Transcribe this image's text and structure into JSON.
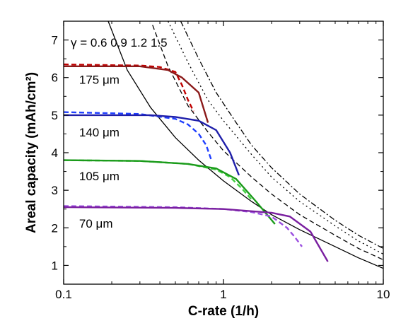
{
  "chart_data": {
    "type": "line",
    "title": "",
    "xlabel": "C-rate (1/h)",
    "ylabel": "Areal capacity (mAh/cm²)",
    "xscale": "log",
    "xlim": [
      0.1,
      10
    ],
    "ylim": [
      0.5,
      7.5
    ],
    "x_ticks": [
      0.1,
      1,
      10
    ],
    "x_tick_labels": [
      "0.1",
      "1",
      "10"
    ],
    "y_ticks": [
      1,
      2,
      3,
      4,
      5,
      6,
      7
    ],
    "y_tick_labels": [
      "1",
      "2",
      "3",
      "4",
      "5",
      "6",
      "7"
    ],
    "grid": false,
    "legend": "none",
    "gamma_label": "γ = 0.6 0.9 1.2 1.5",
    "thickness_labels": [
      {
        "text": "175 μm",
        "x": 0.125,
        "y": 5.95
      },
      {
        "text": "140 μm",
        "x": 0.125,
        "y": 4.55
      },
      {
        "text": "105 μm",
        "x": 0.125,
        "y": 3.38
      },
      {
        "text": "70 μm",
        "x": 0.125,
        "y": 2.12
      }
    ],
    "limit_curves": [
      {
        "gamma": 0.6,
        "style": "solid",
        "x": [
          0.19,
          0.25,
          0.35,
          0.5,
          0.7,
          1.0,
          1.5,
          2.0,
          3.0,
          5.0,
          7.0,
          10.0
        ],
        "y": [
          7.5,
          6.2,
          5.2,
          4.4,
          3.8,
          3.25,
          2.7,
          2.35,
          1.95,
          1.5,
          1.2,
          0.92
        ]
      },
      {
        "gamma": 0.9,
        "style": "dashed",
        "x": [
          0.36,
          0.45,
          0.6,
          0.8,
          1.0,
          1.5,
          2.0,
          3.0,
          5.0,
          7.0,
          10.0
        ],
        "y": [
          7.4,
          6.3,
          5.25,
          4.55,
          4.05,
          3.35,
          2.9,
          2.35,
          1.8,
          1.45,
          1.15
        ]
      },
      {
        "gamma": 1.2,
        "style": "dotted",
        "x": [
          0.45,
          0.6,
          0.8,
          1.0,
          1.5,
          2.0,
          3.0,
          5.0,
          7.0,
          10.0
        ],
        "y": [
          7.5,
          6.4,
          5.4,
          4.85,
          3.95,
          3.35,
          2.7,
          2.05,
          1.65,
          1.3
        ]
      },
      {
        "gamma": 1.5,
        "style": "dash-dot",
        "x": [
          0.54,
          0.7,
          0.9,
          1.2,
          1.5,
          2.0,
          3.0,
          5.0,
          7.0,
          10.0
        ],
        "y": [
          7.5,
          6.5,
          5.6,
          4.8,
          4.2,
          3.6,
          2.9,
          2.2,
          1.8,
          1.45
        ]
      }
    ],
    "series": [
      {
        "thickness": "175 μm",
        "color": "#c00000",
        "style": "dashed",
        "x": [
          0.1,
          0.2,
          0.3,
          0.4,
          0.5,
          0.55,
          0.6,
          0.65
        ],
        "y": [
          6.35,
          6.33,
          6.32,
          6.28,
          6.15,
          5.8,
          5.4,
          5.1
        ]
      },
      {
        "thickness": "175 μm",
        "color": "#8b1a1a",
        "style": "solid",
        "x": [
          0.1,
          0.2,
          0.3,
          0.45,
          0.55,
          0.7,
          0.8
        ],
        "y": [
          6.3,
          6.3,
          6.3,
          6.2,
          6.0,
          5.6,
          4.8
        ]
      },
      {
        "thickness": "140 μm",
        "color": "#1f3fff",
        "style": "dashed",
        "x": [
          0.1,
          0.2,
          0.3,
          0.5,
          0.6,
          0.7,
          0.78,
          0.84
        ],
        "y": [
          5.08,
          5.05,
          5.03,
          4.9,
          4.75,
          4.5,
          4.2,
          3.8
        ]
      },
      {
        "thickness": "140 μm",
        "color": "#1f1faa",
        "style": "solid",
        "x": [
          0.1,
          0.2,
          0.35,
          0.5,
          0.7,
          0.9,
          1.1,
          1.25
        ],
        "y": [
          5.0,
          5.0,
          5.0,
          4.95,
          4.85,
          4.6,
          4.0,
          3.4
        ]
      },
      {
        "thickness": "105 μm",
        "color": "#40d040",
        "style": "dashed",
        "x": [
          0.1,
          0.3,
          0.6,
          0.9,
          1.1,
          1.3,
          1.5
        ],
        "y": [
          3.8,
          3.78,
          3.7,
          3.55,
          3.35,
          3.05,
          2.75
        ]
      },
      {
        "thickness": "105 μm",
        "color": "#1a9a1a",
        "style": "solid",
        "x": [
          0.1,
          0.3,
          0.6,
          0.9,
          1.2,
          1.6,
          2.1
        ],
        "y": [
          3.8,
          3.78,
          3.7,
          3.58,
          3.3,
          2.7,
          2.1
        ]
      },
      {
        "thickness": "70 μm",
        "color": "#9b4fe0",
        "style": "dashed",
        "x": [
          0.1,
          0.5,
          1.0,
          1.5,
          2.0,
          2.5,
          2.8,
          3.1
        ],
        "y": [
          2.58,
          2.55,
          2.5,
          2.42,
          2.3,
          2.0,
          1.75,
          1.5
        ]
      },
      {
        "thickness": "70 μm",
        "color": "#7a1fa0",
        "style": "solid",
        "x": [
          0.1,
          0.5,
          1.0,
          2.0,
          2.6,
          3.5,
          4.5
        ],
        "y": [
          2.55,
          2.53,
          2.5,
          2.4,
          2.3,
          1.9,
          1.1
        ]
      }
    ]
  }
}
